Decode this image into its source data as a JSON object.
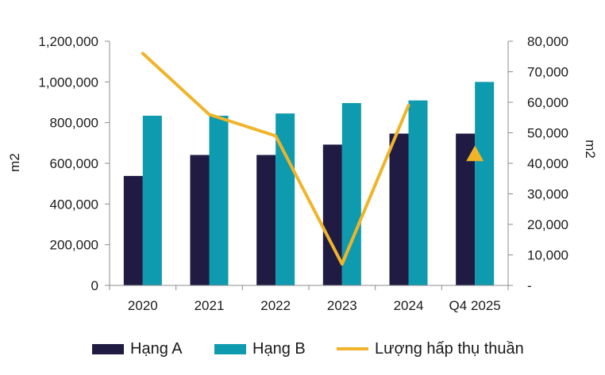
{
  "chart_data": {
    "type": "bar",
    "categories": [
      "2020",
      "2021",
      "2022",
      "2023",
      "2024",
      "Q4 2025"
    ],
    "series": [
      {
        "name": "Hạng A",
        "type": "bar",
        "axis": "left",
        "color": "#1f1b42",
        "values": [
          538000,
          641000,
          641000,
          692000,
          746000,
          746000
        ]
      },
      {
        "name": "Hạng B",
        "type": "bar",
        "axis": "left",
        "color": "#0e9aaf",
        "values": [
          834000,
          834000,
          845000,
          896000,
          909000,
          1000000
        ]
      },
      {
        "name": "Lượng hấp thụ thuần",
        "type": "line",
        "axis": "right",
        "color": "#f0b429",
        "values": [
          76000,
          56000,
          49000,
          7000,
          59000,
          null
        ]
      },
      {
        "name": "Lượng hấp thụ thuần (Q4 2025)",
        "type": "marker",
        "marker": "triangle",
        "axis": "right",
        "color": "#f0b429",
        "values": [
          null,
          null,
          null,
          null,
          null,
          43000
        ]
      }
    ],
    "ylabel": "m2",
    "y2label": "m2",
    "ylim": [
      0,
      1200000
    ],
    "y2lim": [
      0,
      80000
    ],
    "yticks": [
      "0",
      "200,000",
      "400,000",
      "600,000",
      "800,000",
      "1,000,000",
      "1,200,000"
    ],
    "y2ticks": [
      "-",
      "10,000",
      "20,000",
      "30,000",
      "40,000",
      "50,000",
      "60,000",
      "70,000",
      "80,000"
    ],
    "grid": false,
    "legend_position": "bottom"
  },
  "legend": {
    "items": [
      {
        "label": "Hạng A",
        "color": "#1f1b42",
        "kind": "bar"
      },
      {
        "label": "Hạng B",
        "color": "#0e9aaf",
        "kind": "bar"
      },
      {
        "label": "Lượng hấp thụ thuần",
        "color": "#f0b429",
        "kind": "line"
      }
    ]
  }
}
